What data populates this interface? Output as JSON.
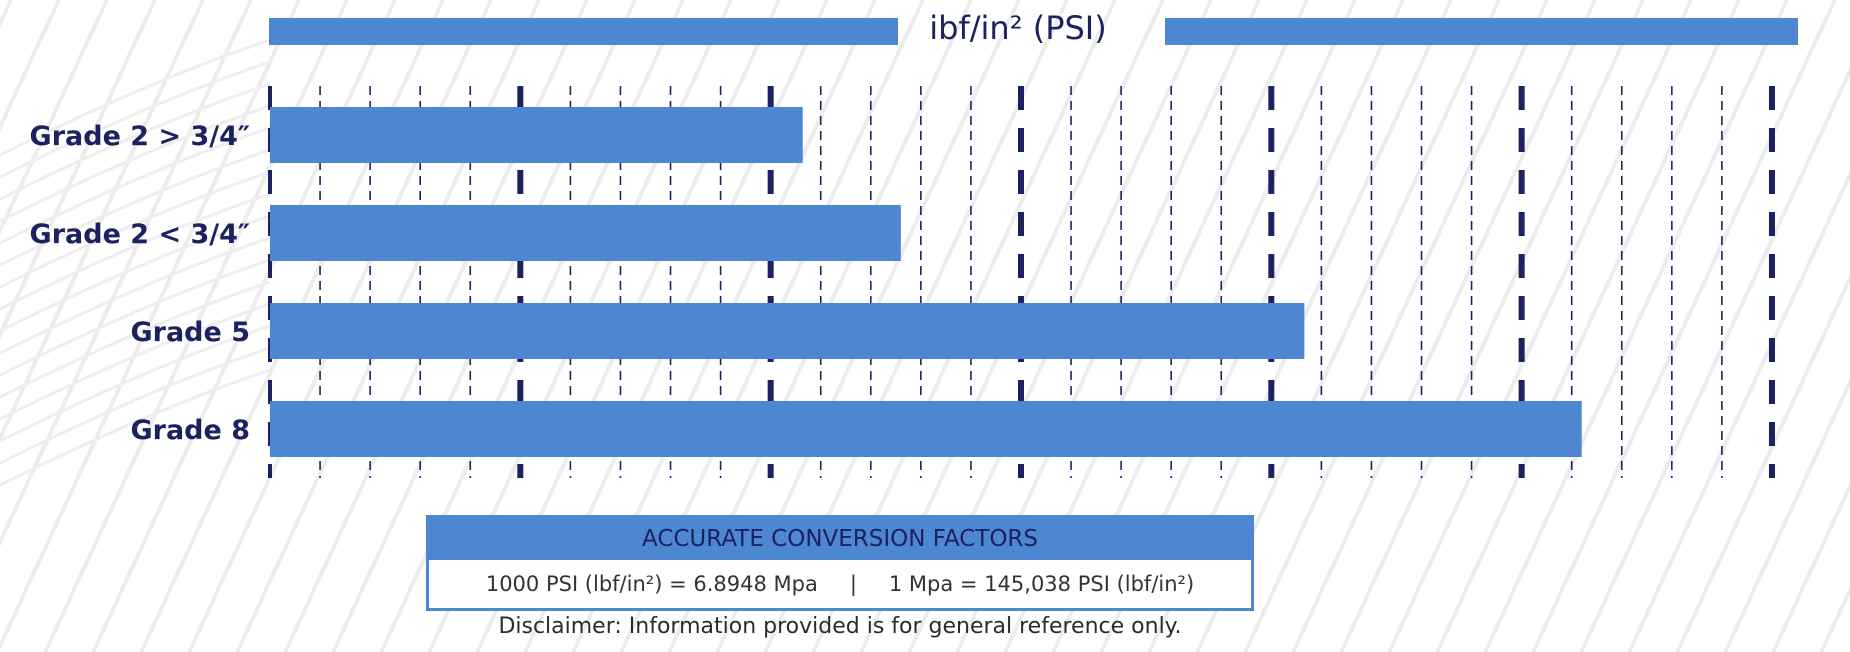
{
  "chart_data": {
    "type": "bar",
    "orientation": "horizontal",
    "title": "ibf/in² (PSI)",
    "categories": [
      "Grade 2 > 3/4″",
      "Grade 2 < 3/4″",
      "Grade 5",
      "Grade 8"
    ],
    "values": [
      53200,
      63000,
      103300,
      131000
    ],
    "xlim": [
      0,
      152000
    ],
    "minor_gridline_step": 5000,
    "major_gridline_step": 25000,
    "grid": true,
    "bar_color": "#4d87d1",
    "grid_color": "#1c2160"
  },
  "conversion": {
    "header": "ACCURATE CONVERSION FACTORS",
    "left": "1000 PSI (lbf/in²) = 6.8948 Mpa",
    "separator": "|",
    "right": "1 Mpa = 145,038 PSI (lbf/in²)"
  },
  "disclaimer": "Disclaimer: Information provided is for general reference only.",
  "colors": {
    "accent": "#4d87d1",
    "label": "#1c2160",
    "background": "#ffffff"
  }
}
